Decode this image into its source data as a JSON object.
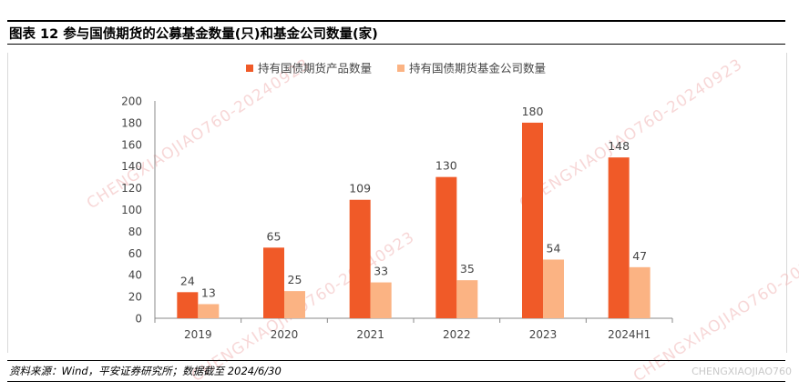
{
  "header": {
    "title": "图表 12   参与国债期货的公募基金数量(只)和基金公司数量(家)"
  },
  "footer": {
    "source": "资料来源：Wind，平安证券研究所；数据截至 2024/6/30"
  },
  "watermark": {
    "text": "CHENGXIAOJIAO760-20240923",
    "corner": "CHENGXIAOJIAO760"
  },
  "colors": {
    "series1": "#f05a28",
    "series2": "#fbb383",
    "axis": "#888888",
    "text": "#444444"
  },
  "chart_data": {
    "type": "bar",
    "categories": [
      "2019",
      "2020",
      "2021",
      "2022",
      "2023",
      "2024H1"
    ],
    "series": [
      {
        "name": "持有国债期货产品数量",
        "values": [
          24,
          65,
          109,
          130,
          180,
          148
        ]
      },
      {
        "name": "持有国债期货基金公司数量",
        "values": [
          13,
          25,
          33,
          35,
          54,
          47
        ]
      }
    ],
    "ylim": [
      0,
      200
    ],
    "yticks": [
      0,
      20,
      40,
      60,
      80,
      100,
      120,
      140,
      160,
      180,
      200
    ],
    "legend": "top-center",
    "grid": false
  }
}
